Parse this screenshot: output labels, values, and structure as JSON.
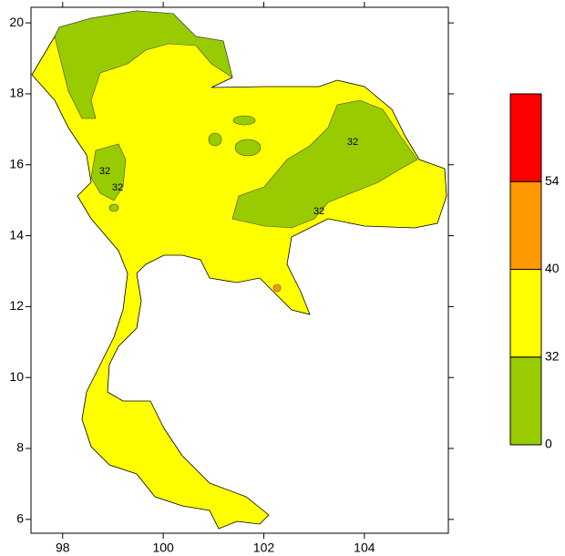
{
  "map": {
    "xlim": [
      97.37,
      105.67
    ],
    "ylim": [
      5.61,
      20.44
    ],
    "xticks": [
      98,
      100,
      102,
      104
    ],
    "yticks": [
      6,
      8,
      10,
      12,
      14,
      16,
      18,
      20
    ],
    "colorbar": {
      "levels": [
        0,
        32,
        40,
        54
      ],
      "colors": [
        "#99cc00",
        "#ffff00",
        "#ff9900",
        "#ff0000"
      ]
    },
    "contour_labels": [
      32,
      32,
      32,
      32
    ]
  }
}
